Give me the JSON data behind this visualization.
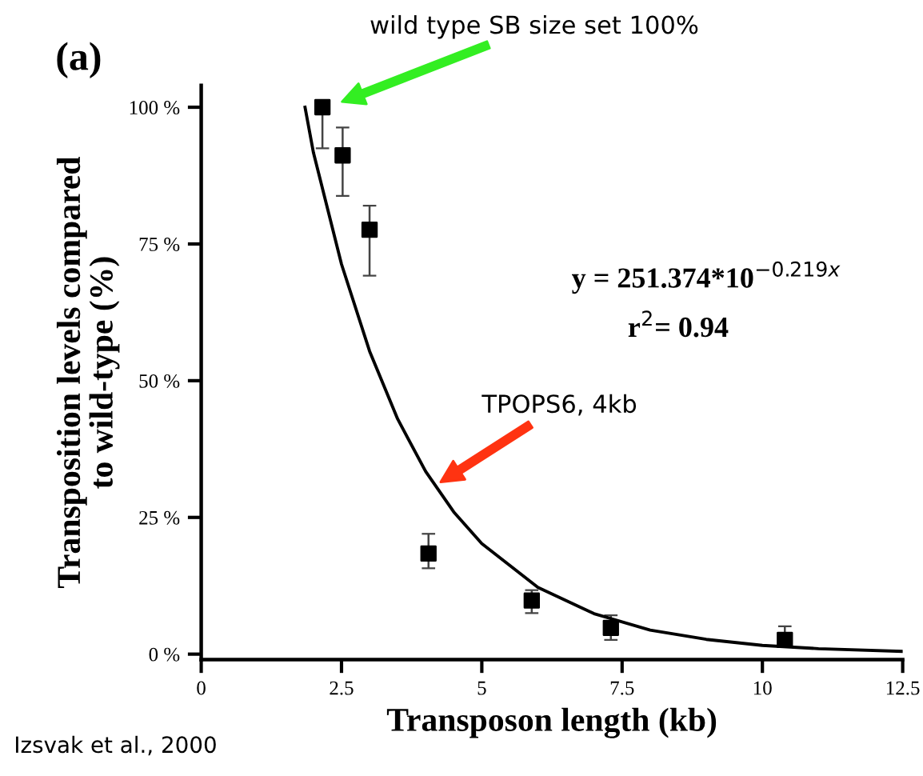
{
  "chart_data": {
    "type": "scatter",
    "title": "(a)",
    "xlabel": "Transposon length (kb)",
    "ylabel": "Transposition levels compared\nto wild-type (%)",
    "xlim": [
      0,
      12.5
    ],
    "ylim": [
      -1,
      104
    ],
    "xticks": [
      0,
      2.5,
      5,
      7.5,
      10,
      12.5
    ],
    "yticks": [
      {
        "value": 0,
        "label": "0 %"
      },
      {
        "value": 25,
        "label": "25 %"
      },
      {
        "value": 50,
        "label": "50 %"
      },
      {
        "value": 75,
        "label": "75 %"
      },
      {
        "value": 100,
        "label": "100 %"
      }
    ],
    "grid": false,
    "legend": false,
    "series": [
      {
        "color": "#000000",
        "marker": "square",
        "x": [
          2.16,
          2.52,
          3.0,
          4.05,
          5.89,
          7.3,
          10.4
        ],
        "values": [
          100,
          91.2,
          77.6,
          18.4,
          9.8,
          4.8,
          2.6
        ],
        "errors": [
          [
            92.5,
            100
          ],
          [
            83.8,
            96.3
          ],
          [
            69.2,
            82
          ],
          [
            15.7,
            22
          ],
          [
            7.5,
            11.7
          ],
          [
            2.6,
            7.1
          ],
          [
            1.7,
            5.1
          ]
        ]
      },
      {
        "type": "line",
        "color": "#000000",
        "marker": "none",
        "line_style": "solid",
        "x": [
          1.85,
          2,
          2.5,
          3,
          3.5,
          4,
          4.5,
          5,
          6,
          7,
          8,
          9,
          10,
          11,
          12.5
        ],
        "values": [
          100,
          91.7,
          71.3,
          55.4,
          43.0,
          33.4,
          26.0,
          20.2,
          12.2,
          7.4,
          4.4,
          2.7,
          1.6,
          1.0,
          0.5
        ]
      }
    ],
    "annotations": [
      "wild type SB size set 100%",
      "TPOPS6, 4kb",
      "y = 251.374*10$^{−0.219x}$",
      "r$^{2}$= 0.94",
      "Izsvak et al., 2000"
    ]
  }
}
